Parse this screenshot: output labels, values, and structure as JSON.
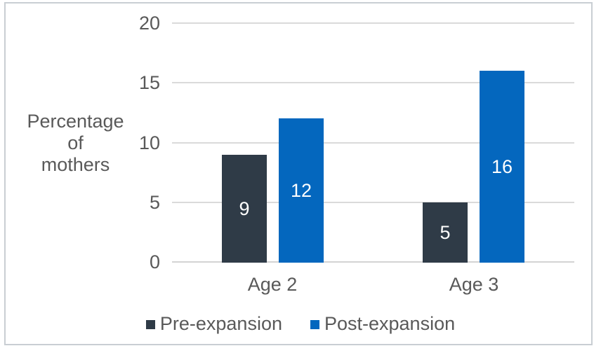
{
  "chart_data": {
    "type": "bar",
    "title": "",
    "categories": [
      "Age 2",
      "Age 3"
    ],
    "series": [
      {
        "name": "Pre-expansion",
        "color": "#2F3B47",
        "values": [
          9,
          5
        ]
      },
      {
        "name": "Post-expansion",
        "color": "#0467BE",
        "values": [
          12,
          16
        ]
      }
    ],
    "ylabel": "Percentage of mothers",
    "ylabel_lines": [
      "Percentage",
      "of",
      "mothers"
    ],
    "yticks": [
      0,
      5,
      10,
      15,
      20
    ],
    "ylim": [
      0,
      20
    ],
    "grid": true,
    "gridline_color": "#DADADA",
    "axis_line_color": "#D3D3D3",
    "text_color": "#595959",
    "data_label_position": "inside-center",
    "data_label_color": "#FFFFFF",
    "legend_position": "bottom",
    "frame_border_color": "#C9CED3"
  }
}
